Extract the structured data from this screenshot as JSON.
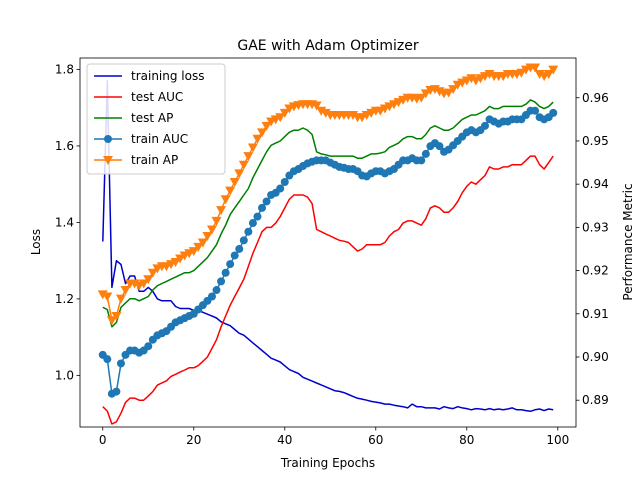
{
  "chart_data": {
    "type": "line",
    "title": "GAE with Adam Optimizer",
    "xlabel": "Training Epochs",
    "ylabel_left": "Loss",
    "ylabel_right": "Performance Metric",
    "xlim": [
      -5,
      104
    ],
    "ylim_left": [
      0.865,
      1.83
    ],
    "ylim_right": [
      0.8838,
      0.9692
    ],
    "x_ticks": [
      0,
      20,
      40,
      60,
      80,
      100
    ],
    "y_ticks_left": [
      "1.0",
      "1.2",
      "1.4",
      "1.6",
      "1.8"
    ],
    "y_ticks_right": [
      "0.89",
      "0.90",
      "0.91",
      "0.92",
      "0.93",
      "0.94",
      "0.95",
      "0.96"
    ],
    "legend_position": "upper-left",
    "series": [
      {
        "name": "training loss",
        "axis": "left",
        "color": "#0000cc",
        "marker": "none",
        "x": [
          0,
          1,
          2,
          3,
          4,
          5,
          6,
          7,
          8,
          9,
          10,
          11,
          12,
          13,
          14,
          15,
          16,
          17,
          18,
          19,
          20,
          21,
          22,
          23,
          24,
          25,
          26,
          27,
          28,
          29,
          30,
          31,
          32,
          33,
          34,
          35,
          36,
          37,
          38,
          39,
          40,
          41,
          42,
          43,
          44,
          45,
          46,
          47,
          48,
          49,
          50,
          51,
          52,
          53,
          54,
          55,
          56,
          57,
          58,
          59,
          60,
          61,
          62,
          63,
          64,
          65,
          66,
          67,
          68,
          69,
          70,
          71,
          72,
          73,
          74,
          75,
          76,
          77,
          78,
          79,
          80,
          81,
          82,
          83,
          84,
          85,
          86,
          87,
          88,
          89,
          90,
          91,
          92,
          93,
          94,
          95,
          96,
          97,
          98,
          99
        ],
        "values": [
          1.35,
          1.77,
          1.23,
          1.3,
          1.29,
          1.24,
          1.26,
          1.26,
          1.22,
          1.22,
          1.23,
          1.22,
          1.2,
          1.195,
          1.195,
          1.195,
          1.18,
          1.175,
          1.175,
          1.175,
          1.17,
          1.17,
          1.165,
          1.16,
          1.155,
          1.15,
          1.14,
          1.135,
          1.13,
          1.12,
          1.11,
          1.105,
          1.095,
          1.085,
          1.075,
          1.065,
          1.055,
          1.045,
          1.04,
          1.035,
          1.025,
          1.015,
          1.01,
          1.005,
          0.995,
          0.99,
          0.985,
          0.98,
          0.975,
          0.97,
          0.965,
          0.96,
          0.958,
          0.955,
          0.95,
          0.945,
          0.94,
          0.938,
          0.935,
          0.932,
          0.93,
          0.928,
          0.925,
          0.925,
          0.922,
          0.92,
          0.918,
          0.915,
          0.925,
          0.918,
          0.918,
          0.915,
          0.915,
          0.915,
          0.912,
          0.918,
          0.915,
          0.913,
          0.918,
          0.915,
          0.913,
          0.91,
          0.913,
          0.912,
          0.91,
          0.913,
          0.91,
          0.912,
          0.91,
          0.912,
          0.915,
          0.91,
          0.91,
          0.908,
          0.906,
          0.91,
          0.912,
          0.908,
          0.912,
          0.91
        ]
      },
      {
        "name": "test AUC",
        "axis": "right",
        "color": "#ff0000",
        "marker": "none",
        "x": [
          0,
          1,
          2,
          3,
          4,
          5,
          6,
          7,
          8,
          9,
          10,
          11,
          12,
          13,
          14,
          15,
          16,
          17,
          18,
          19,
          20,
          21,
          22,
          23,
          24,
          25,
          26,
          27,
          28,
          29,
          30,
          31,
          32,
          33,
          34,
          35,
          36,
          37,
          38,
          39,
          40,
          41,
          42,
          43,
          44,
          45,
          46,
          47,
          48,
          49,
          50,
          51,
          52,
          53,
          54,
          55,
          56,
          57,
          58,
          59,
          60,
          61,
          62,
          63,
          64,
          65,
          66,
          67,
          68,
          69,
          70,
          71,
          72,
          73,
          74,
          75,
          76,
          77,
          78,
          79,
          80,
          81,
          82,
          83,
          84,
          85,
          86,
          87,
          88,
          89,
          90,
          91,
          92,
          93,
          94,
          95,
          96,
          97,
          98,
          99
        ],
        "values": [
          0.8885,
          0.8875,
          0.8845,
          0.885,
          0.887,
          0.8895,
          0.8905,
          0.8905,
          0.89,
          0.89,
          0.891,
          0.892,
          0.8935,
          0.894,
          0.8945,
          0.8955,
          0.896,
          0.8965,
          0.897,
          0.8975,
          0.8975,
          0.898,
          0.899,
          0.9,
          0.902,
          0.904,
          0.907,
          0.9095,
          0.912,
          0.914,
          0.916,
          0.918,
          0.921,
          0.924,
          0.9265,
          0.929,
          0.93,
          0.93,
          0.931,
          0.9325,
          0.9345,
          0.9365,
          0.9375,
          0.9375,
          0.9375,
          0.937,
          0.9355,
          0.9295,
          0.929,
          0.9285,
          0.928,
          0.9275,
          0.927,
          0.9268,
          0.9265,
          0.9255,
          0.9245,
          0.925,
          0.926,
          0.926,
          0.926,
          0.926,
          0.9265,
          0.928,
          0.929,
          0.9295,
          0.931,
          0.9315,
          0.9315,
          0.931,
          0.9305,
          0.932,
          0.9345,
          0.935,
          0.9345,
          0.9335,
          0.9335,
          0.9345,
          0.936,
          0.938,
          0.9395,
          0.9405,
          0.94,
          0.941,
          0.942,
          0.944,
          0.9435,
          0.9435,
          0.944,
          0.944,
          0.9445,
          0.9445,
          0.9445,
          0.9455,
          0.9465,
          0.9465,
          0.9445,
          0.9435,
          0.945,
          0.9465
        ]
      },
      {
        "name": "test AP",
        "axis": "right",
        "color": "#008000",
        "marker": "none",
        "x": [
          0,
          1,
          2,
          3,
          4,
          5,
          6,
          7,
          8,
          9,
          10,
          11,
          12,
          13,
          14,
          15,
          16,
          17,
          18,
          19,
          20,
          21,
          22,
          23,
          24,
          25,
          26,
          27,
          28,
          29,
          30,
          31,
          32,
          33,
          34,
          35,
          36,
          37,
          38,
          39,
          40,
          41,
          42,
          43,
          44,
          45,
          46,
          47,
          48,
          49,
          50,
          51,
          52,
          53,
          54,
          55,
          56,
          57,
          58,
          59,
          60,
          61,
          62,
          63,
          64,
          65,
          66,
          67,
          68,
          69,
          70,
          71,
          72,
          73,
          74,
          75,
          76,
          77,
          78,
          79,
          80,
          81,
          82,
          83,
          84,
          85,
          86,
          87,
          88,
          89,
          90,
          91,
          92,
          93,
          94,
          95,
          96,
          97,
          98,
          99
        ],
        "values": [
          0.9115,
          0.911,
          0.907,
          0.908,
          0.9115,
          0.9125,
          0.9135,
          0.9135,
          0.913,
          0.9135,
          0.914,
          0.9155,
          0.9165,
          0.917,
          0.9175,
          0.918,
          0.9185,
          0.919,
          0.9195,
          0.9195,
          0.92,
          0.921,
          0.922,
          0.923,
          0.9245,
          0.926,
          0.9285,
          0.9305,
          0.933,
          0.9345,
          0.936,
          0.9375,
          0.939,
          0.9415,
          0.9435,
          0.9455,
          0.9475,
          0.949,
          0.9495,
          0.95,
          0.951,
          0.952,
          0.9525,
          0.9525,
          0.953,
          0.9525,
          0.9515,
          0.9475,
          0.947,
          0.9468,
          0.9465,
          0.9465,
          0.9465,
          0.9465,
          0.9465,
          0.9465,
          0.946,
          0.946,
          0.9465,
          0.947,
          0.947,
          0.9472,
          0.9475,
          0.9485,
          0.949,
          0.9495,
          0.9505,
          0.951,
          0.951,
          0.9505,
          0.9505,
          0.9515,
          0.953,
          0.9535,
          0.953,
          0.9525,
          0.9525,
          0.953,
          0.954,
          0.955,
          0.9555,
          0.956,
          0.956,
          0.9565,
          0.957,
          0.958,
          0.9575,
          0.9575,
          0.958,
          0.958,
          0.958,
          0.958,
          0.958,
          0.9585,
          0.9595,
          0.959,
          0.958,
          0.9575,
          0.958,
          0.959
        ]
      },
      {
        "name": "train AUC",
        "axis": "right",
        "color": "#1f77b4",
        "marker": "circle",
        "x": [
          0,
          1,
          2,
          3,
          4,
          5,
          6,
          7,
          8,
          9,
          10,
          11,
          12,
          13,
          14,
          15,
          16,
          17,
          18,
          19,
          20,
          21,
          22,
          23,
          24,
          25,
          26,
          27,
          28,
          29,
          30,
          31,
          32,
          33,
          34,
          35,
          36,
          37,
          38,
          39,
          40,
          41,
          42,
          43,
          44,
          45,
          46,
          47,
          48,
          49,
          50,
          51,
          52,
          53,
          54,
          55,
          56,
          57,
          58,
          59,
          60,
          61,
          62,
          63,
          64,
          65,
          66,
          67,
          68,
          69,
          70,
          71,
          72,
          73,
          74,
          75,
          76,
          77,
          78,
          79,
          80,
          81,
          82,
          83,
          84,
          85,
          86,
          87,
          88,
          89,
          90,
          91,
          92,
          93,
          94,
          95,
          96,
          97,
          98,
          99
        ],
        "values": [
          0.9005,
          0.8995,
          0.8915,
          0.892,
          0.8985,
          0.9005,
          0.9015,
          0.9015,
          0.901,
          0.9015,
          0.9025,
          0.904,
          0.905,
          0.9055,
          0.906,
          0.907,
          0.908,
          0.9085,
          0.909,
          0.9095,
          0.91,
          0.911,
          0.912,
          0.913,
          0.914,
          0.9155,
          0.9175,
          0.9195,
          0.9215,
          0.9235,
          0.925,
          0.927,
          0.929,
          0.931,
          0.9325,
          0.9345,
          0.936,
          0.9375,
          0.938,
          0.939,
          0.9405,
          0.942,
          0.943,
          0.9435,
          0.9442,
          0.9448,
          0.9452,
          0.9455,
          0.9455,
          0.9455,
          0.945,
          0.9445,
          0.944,
          0.9438,
          0.9435,
          0.9435,
          0.943,
          0.942,
          0.9418,
          0.9425,
          0.943,
          0.943,
          0.9425,
          0.943,
          0.9435,
          0.9445,
          0.9455,
          0.9455,
          0.946,
          0.9455,
          0.9455,
          0.947,
          0.9488,
          0.9495,
          0.9488,
          0.9475,
          0.948,
          0.949,
          0.95,
          0.951,
          0.952,
          0.9525,
          0.952,
          0.9525,
          0.9535,
          0.955,
          0.9545,
          0.954,
          0.9545,
          0.9545,
          0.955,
          0.955,
          0.955,
          0.956,
          0.957,
          0.957,
          0.9555,
          0.955,
          0.9555,
          0.9565
        ]
      },
      {
        "name": "train AP",
        "axis": "right",
        "color": "#ff7f0e",
        "marker": "triangle-down",
        "x": [
          0,
          1,
          2,
          3,
          4,
          5,
          6,
          7,
          8,
          9,
          10,
          11,
          12,
          13,
          14,
          15,
          16,
          17,
          18,
          19,
          20,
          21,
          22,
          23,
          24,
          25,
          26,
          27,
          28,
          29,
          30,
          31,
          32,
          33,
          34,
          35,
          36,
          37,
          38,
          39,
          40,
          41,
          42,
          43,
          44,
          45,
          46,
          47,
          48,
          49,
          50,
          51,
          52,
          53,
          54,
          55,
          56,
          57,
          58,
          59,
          60,
          61,
          62,
          63,
          64,
          65,
          66,
          67,
          68,
          69,
          70,
          71,
          72,
          73,
          74,
          75,
          76,
          77,
          78,
          79,
          80,
          81,
          82,
          83,
          84,
          85,
          86,
          87,
          88,
          89,
          90,
          91,
          92,
          93,
          94,
          95,
          96,
          97,
          98,
          99
        ],
        "values": [
          0.9145,
          0.914,
          0.9085,
          0.9095,
          0.9135,
          0.9155,
          0.917,
          0.917,
          0.9165,
          0.917,
          0.918,
          0.9195,
          0.9205,
          0.921,
          0.921,
          0.9215,
          0.922,
          0.9228,
          0.9235,
          0.924,
          0.9245,
          0.9255,
          0.9265,
          0.928,
          0.9295,
          0.9315,
          0.934,
          0.9365,
          0.9385,
          0.9405,
          0.9425,
          0.9445,
          0.9465,
          0.9485,
          0.9505,
          0.952,
          0.9535,
          0.9545,
          0.955,
          0.9555,
          0.9565,
          0.9575,
          0.958,
          0.9583,
          0.9585,
          0.9585,
          0.9585,
          0.9582,
          0.957,
          0.9565,
          0.956,
          0.956,
          0.956,
          0.956,
          0.956,
          0.956,
          0.9555,
          0.9555,
          0.956,
          0.9565,
          0.957,
          0.957,
          0.9575,
          0.958,
          0.9585,
          0.959,
          0.9595,
          0.96,
          0.96,
          0.9598,
          0.96,
          0.961,
          0.9618,
          0.962,
          0.9615,
          0.961,
          0.9612,
          0.962,
          0.963,
          0.9635,
          0.964,
          0.9645,
          0.964,
          0.9645,
          0.965,
          0.9655,
          0.965,
          0.965,
          0.965,
          0.9655,
          0.9655,
          0.9655,
          0.9658,
          0.9665,
          0.967,
          0.967,
          0.9655,
          0.965,
          0.9655,
          0.9665
        ]
      }
    ]
  }
}
